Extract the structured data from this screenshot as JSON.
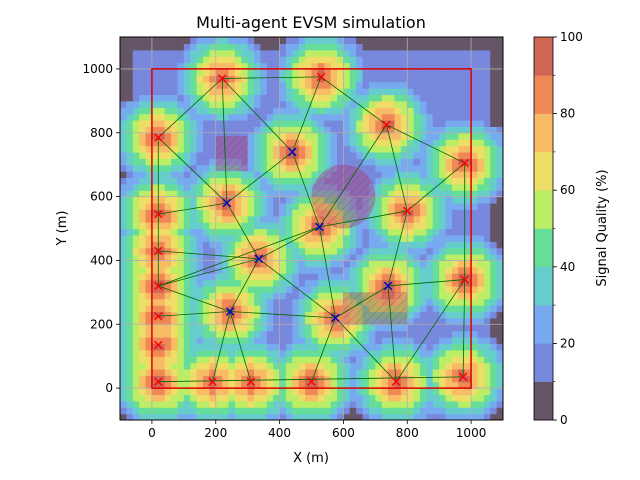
{
  "chart_data": {
    "type": "scatter",
    "title": "Multi-agent EVSM simulation",
    "xlabel": "X (m)",
    "ylabel": "Y (m)",
    "xlim": [
      -100,
      1100
    ],
    "ylim": [
      -100,
      1100
    ],
    "xticks": [
      0,
      200,
      400,
      600,
      800,
      1000
    ],
    "yticks": [
      0,
      200,
      400,
      600,
      800,
      1000
    ],
    "grid": true,
    "boundary": [
      [
        0,
        0
      ],
      [
        1000,
        0
      ],
      [
        1000,
        1000
      ],
      [
        0,
        1000
      ]
    ],
    "boundary_color": "#dd0000",
    "obstacles": [
      {
        "type": "rect",
        "x0": 200,
        "y0": 680,
        "x1": 300,
        "y1": 790
      },
      {
        "type": "circle",
        "cx": 600,
        "cy": 600,
        "r": 100
      },
      {
        "type": "rect",
        "x0": 600,
        "y0": 200,
        "x1": 800,
        "y1": 300
      }
    ],
    "obstacle_color": "#b03060",
    "colorbar": {
      "label": "Signal Quality (%)",
      "min": 0,
      "max": 100,
      "ticks": [
        0,
        20,
        40,
        60,
        80,
        100
      ],
      "levels": [
        0,
        10,
        20,
        30,
        40,
        50,
        60,
        70,
        80,
        90,
        100
      ],
      "colors": [
        "#665566",
        "#7788dd",
        "#77aaee",
        "#66cccc",
        "#66dd99",
        "#bbee66",
        "#eedd66",
        "#f8bb66",
        "#f08855",
        "#d06655"
      ]
    },
    "series": [
      {
        "name": "anchors",
        "marker": "x",
        "color": "#ff0000",
        "points": [
          [
            20,
            785
          ],
          [
            20,
            545
          ],
          [
            20,
            430
          ],
          [
            20,
            320
          ],
          [
            20,
            225
          ],
          [
            20,
            135
          ],
          [
            20,
            20
          ],
          [
            220,
            970
          ],
          [
            530,
            975
          ],
          [
            735,
            825
          ],
          [
            980,
            705
          ],
          [
            800,
            555
          ],
          [
            980,
            340
          ],
          [
            975,
            35
          ],
          [
            765,
            20
          ],
          [
            500,
            20
          ],
          [
            310,
            20
          ],
          [
            190,
            20
          ]
        ]
      },
      {
        "name": "agents",
        "marker": "x",
        "color": "#0000cc",
        "points": [
          [
            440,
            740
          ],
          [
            235,
            580
          ],
          [
            525,
            505
          ],
          [
            335,
            405
          ],
          [
            245,
            240
          ],
          [
            575,
            220
          ],
          [
            740,
            320
          ]
        ]
      }
    ],
    "links_color": "#006600",
    "links": [
      [
        [
          20,
          20
        ],
        [
          975,
          35
        ]
      ],
      [
        [
          20,
          785
        ],
        [
          220,
          970
        ]
      ],
      [
        [
          220,
          970
        ],
        [
          530,
          975
        ]
      ],
      [
        [
          20,
          785
        ],
        [
          235,
          580
        ]
      ],
      [
        [
          220,
          970
        ],
        [
          235,
          580
        ]
      ],
      [
        [
          20,
          785
        ],
        [
          20,
          545
        ]
      ],
      [
        [
          235,
          580
        ],
        [
          20,
          545
        ]
      ],
      [
        [
          235,
          580
        ],
        [
          440,
          740
        ]
      ],
      [
        [
          220,
          970
        ],
        [
          440,
          740
        ]
      ],
      [
        [
          530,
          975
        ],
        [
          440,
          740
        ]
      ],
      [
        [
          530,
          975
        ],
        [
          735,
          825
        ]
      ],
      [
        [
          440,
          740
        ],
        [
          525,
          505
        ]
      ],
      [
        [
          235,
          580
        ],
        [
          335,
          405
        ]
      ],
      [
        [
          735,
          825
        ],
        [
          525,
          505
        ]
      ],
      [
        [
          735,
          825
        ],
        [
          980,
          705
        ]
      ],
      [
        [
          735,
          825
        ],
        [
          800,
          555
        ]
      ],
      [
        [
          980,
          705
        ],
        [
          800,
          555
        ]
      ],
      [
        [
          525,
          505
        ],
        [
          800,
          555
        ]
      ],
      [
        [
          800,
          555
        ],
        [
          740,
          320
        ]
      ],
      [
        [
          525,
          505
        ],
        [
          335,
          405
        ]
      ],
      [
        [
          525,
          505
        ],
        [
          575,
          220
        ]
      ],
      [
        [
          20,
          430
        ],
        [
          335,
          405
        ]
      ],
      [
        [
          20,
          320
        ],
        [
          335,
          405
        ]
      ],
      [
        [
          335,
          405
        ],
        [
          245,
          240
        ]
      ],
      [
        [
          335,
          405
        ],
        [
          575,
          220
        ]
      ],
      [
        [
          20,
          320
        ],
        [
          245,
          240
        ]
      ],
      [
        [
          20,
          225
        ],
        [
          245,
          240
        ]
      ],
      [
        [
          245,
          240
        ],
        [
          575,
          220
        ]
      ],
      [
        [
          245,
          240
        ],
        [
          190,
          20
        ]
      ],
      [
        [
          245,
          240
        ],
        [
          310,
          20
        ]
      ],
      [
        [
          575,
          220
        ],
        [
          500,
          20
        ]
      ],
      [
        [
          575,
          220
        ],
        [
          765,
          20
        ]
      ],
      [
        [
          575,
          220
        ],
        [
          740,
          320
        ]
      ],
      [
        [
          740,
          320
        ],
        [
          980,
          340
        ]
      ],
      [
        [
          740,
          320
        ],
        [
          765,
          20
        ]
      ],
      [
        [
          980,
          340
        ],
        [
          980,
          705
        ]
      ],
      [
        [
          980,
          340
        ],
        [
          975,
          35
        ]
      ],
      [
        [
          980,
          340
        ],
        [
          765,
          20
        ]
      ],
      [
        [
          20,
          320
        ],
        [
          525,
          505
        ]
      ],
      [
        [
          20,
          545
        ],
        [
          20,
          320
        ]
      ]
    ],
    "field_centers": [
      [
        20,
        785
      ],
      [
        20,
        545
      ],
      [
        20,
        430
      ],
      [
        20,
        320
      ],
      [
        20,
        225
      ],
      [
        20,
        135
      ],
      [
        20,
        20
      ],
      [
        220,
        970
      ],
      [
        530,
        975
      ],
      [
        735,
        825
      ],
      [
        980,
        705
      ],
      [
        800,
        555
      ],
      [
        980,
        340
      ],
      [
        975,
        35
      ],
      [
        765,
        20
      ],
      [
        500,
        20
      ],
      [
        310,
        20
      ],
      [
        190,
        20
      ],
      [
        440,
        740
      ],
      [
        235,
        580
      ],
      [
        525,
        505
      ],
      [
        335,
        405
      ],
      [
        245,
        240
      ],
      [
        575,
        220
      ],
      [
        740,
        320
      ]
    ],
    "field_radius": 175
  }
}
